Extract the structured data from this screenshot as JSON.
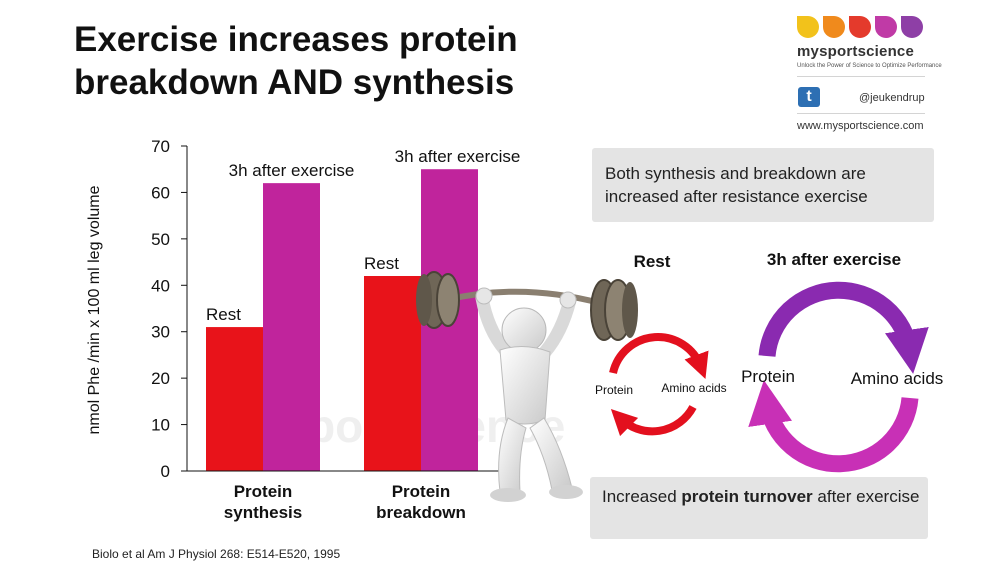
{
  "slide": {
    "title_line1": "Exercise increases protein",
    "title_line2": "breakdown AND synthesis",
    "reference": "Biolo et al Am J Physiol 268: E514-E520, 1995"
  },
  "logo": {
    "name": "mysportscience",
    "tagline": "Unlock the Power of Science to Optimize Performance",
    "twitter_icon": "twitter-icon",
    "handle": "@jeukendrup",
    "website": "www.mysportscience.com",
    "petal_colors": [
      "#f2c21b",
      "#f08a1c",
      "#e43a2c",
      "#c03aa6",
      "#8e3fa6"
    ]
  },
  "watermark": "mysportscience",
  "colors": {
    "rest": "#e8131a",
    "exercise": "#c0249c",
    "cycle_red": "#e3101e",
    "cycle_purple": "#8a2ab0",
    "cycle_magenta": "#c830b6"
  },
  "chart_data": {
    "type": "bar",
    "ylabel": "nmol Phe /min x 100 ml leg volume",
    "ylim": [
      0,
      70
    ],
    "yticks": [
      0,
      10,
      20,
      30,
      40,
      50,
      60,
      70
    ],
    "categories": [
      {
        "line1": "Protein",
        "line2": "synthesis"
      },
      {
        "line1": "Protein",
        "line2": "breakdown"
      }
    ],
    "series": [
      {
        "name": "Rest",
        "values": [
          31,
          42
        ]
      },
      {
        "name": "3h after exercise",
        "values": [
          62,
          65
        ]
      }
    ],
    "grid": false
  },
  "info": {
    "box1": "Both synthesis and breakdown are increased after resistance exercise",
    "box2_prefix": "Increased ",
    "box2_bold": "protein turnover",
    "box2_suffix": " after exercise"
  },
  "cycles": {
    "rest": {
      "title": "Rest",
      "left_label": "Protein",
      "right_label": "Amino acids"
    },
    "exercise": {
      "title": "3h after exercise",
      "left_label": "Protein",
      "right_label": "Amino acids"
    }
  },
  "figure_icon": "weightlifter-figure-icon"
}
